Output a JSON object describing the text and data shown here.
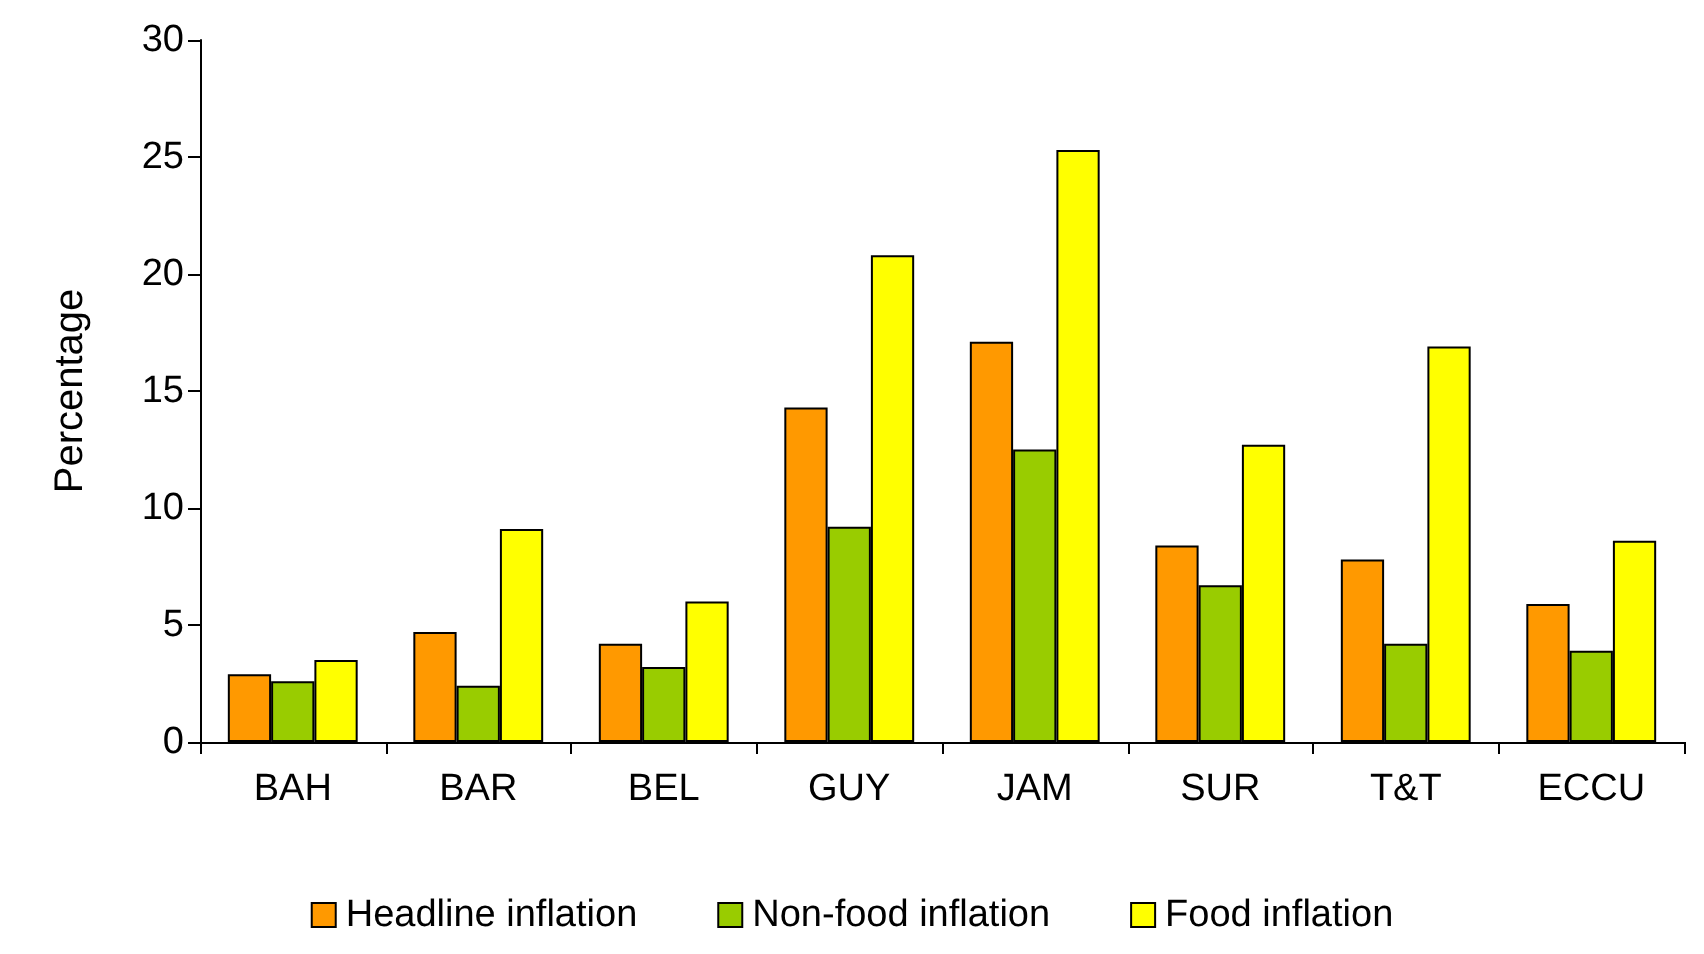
{
  "chart_data": {
    "type": "bar",
    "ylabel": "Percentage",
    "categories": [
      "BAH",
      "BAR",
      "BEL",
      "GUY",
      "JAM",
      "SUR",
      "T&T",
      "ECCU"
    ],
    "series": [
      {
        "name": "Headline inflation",
        "color": "#ff9900",
        "values": [
          2.9,
          4.7,
          4.2,
          14.3,
          17.1,
          8.4,
          7.8,
          5.9
        ]
      },
      {
        "name": "Non-food inflation",
        "color": "#99cc00",
        "values": [
          2.6,
          2.4,
          3.2,
          9.2,
          12.5,
          6.7,
          4.2,
          3.9
        ]
      },
      {
        "name": "Food inflation",
        "color": "#ffff00",
        "values": [
          3.5,
          9.1,
          6.0,
          20.8,
          25.3,
          12.7,
          16.9,
          8.6
        ]
      }
    ],
    "ylim": [
      0,
      30
    ],
    "yticks": [
      0,
      5,
      10,
      15,
      20,
      25,
      30
    ],
    "grid": false,
    "legend": "bottom"
  }
}
